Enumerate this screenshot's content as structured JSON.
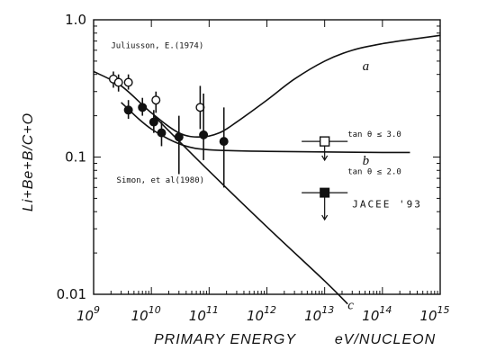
{
  "chart_data": {
    "type": "scatter",
    "xlabel": "PRIMARY ENERGY",
    "xunit": "eV/NUCLEON",
    "ylabel": "Li+Be+B/C+O",
    "xscale": "log",
    "yscale": "log",
    "xlim": [
      1000000000.0,
      1000000000000000.0
    ],
    "ylim": [
      0.01,
      1.0
    ],
    "y_ticks": [
      {
        "value": 1.0,
        "label": "1.0"
      },
      {
        "value": 0.1,
        "label": "0.1"
      },
      {
        "value": 0.01,
        "label": "0.01"
      }
    ],
    "x_ticks": [
      {
        "value": 1000000000.0,
        "base": "10",
        "exp": "9"
      },
      {
        "value": 10000000000.0,
        "base": "10",
        "exp": "10"
      },
      {
        "value": 100000000000.0,
        "base": "10",
        "exp": "11"
      },
      {
        "value": 1000000000000.0,
        "base": "10",
        "exp": "12"
      },
      {
        "value": 10000000000000.0,
        "base": "10",
        "exp": "13"
      },
      {
        "value": 100000000000000.0,
        "base": "10",
        "exp": "14"
      },
      {
        "value": 1000000000000000.0,
        "base": "10",
        "exp": "15"
      }
    ],
    "series": [
      {
        "name": "Juliusson, E.(1974)",
        "marker": "open-circle",
        "points": [
          {
            "x": 2200000000.0,
            "y": 0.37,
            "ylo": 0.32,
            "yhi": 0.42
          },
          {
            "x": 2700000000.0,
            "y": 0.35,
            "ylo": 0.3,
            "yhi": 0.4
          },
          {
            "x": 4000000000.0,
            "y": 0.35,
            "ylo": 0.31,
            "yhi": 0.4
          },
          {
            "x": 12000000000.0,
            "y": 0.26,
            "ylo": 0.21,
            "yhi": 0.3
          },
          {
            "x": 70000000000.0,
            "y": 0.23,
            "ylo": 0.16,
            "yhi": 0.33
          }
        ]
      },
      {
        "name": "Simon, et al(1980)",
        "marker": "filled-circle",
        "points": [
          {
            "x": 4000000000.0,
            "y": 0.22,
            "ylo": 0.19,
            "yhi": 0.26
          },
          {
            "x": 7000000000.0,
            "y": 0.23,
            "ylo": 0.2,
            "yhi": 0.27
          },
          {
            "x": 11000000000.0,
            "y": 0.18,
            "ylo": 0.15,
            "yhi": 0.22
          },
          {
            "x": 15000000000.0,
            "y": 0.15,
            "ylo": 0.12,
            "yhi": 0.18
          },
          {
            "x": 30000000000.0,
            "y": 0.14,
            "ylo": 0.075,
            "yhi": 0.2
          },
          {
            "x": 80000000000.0,
            "y": 0.145,
            "ylo": 0.095,
            "yhi": 0.29
          },
          {
            "x": 180000000000.0,
            "y": 0.13,
            "ylo": 0.06,
            "yhi": 0.23
          }
        ]
      },
      {
        "name": "JACEE '93",
        "marker": "square",
        "points": [
          {
            "x": 10000000000000.0,
            "y": 0.13,
            "marker": "open-square",
            "note": "tan θ ≤ 3.0",
            "upper_limit_to": 0.095,
            "xlo": 4000000000000.0,
            "xhi": 25000000000000.0
          },
          {
            "x": 10000000000000.0,
            "y": 0.055,
            "marker": "filled-square",
            "note": "tan θ ≤ 2.0",
            "upper_limit_to": 0.035,
            "xlo": 4000000000000.0,
            "xhi": 25000000000000.0
          }
        ]
      }
    ],
    "curves": [
      {
        "name": "a",
        "points": [
          [
            1000000000.0,
            0.42
          ],
          [
            3000000000.0,
            0.33
          ],
          [
            10000000000.0,
            0.21
          ],
          [
            30000000000.0,
            0.15
          ],
          [
            70000000000.0,
            0.14
          ],
          [
            150000000000.0,
            0.15
          ],
          [
            300000000000.0,
            0.18
          ],
          [
            1000000000000.0,
            0.26
          ],
          [
            3000000000000.0,
            0.37
          ],
          [
            10000000000000.0,
            0.5
          ],
          [
            30000000000000.0,
            0.6
          ],
          [
            100000000000000.0,
            0.67
          ],
          [
            400000000000000.0,
            0.73
          ],
          [
            1000000000000000.0,
            0.77
          ]
        ]
      },
      {
        "name": "b",
        "points": [
          [
            3000000000.0,
            0.25
          ],
          [
            6000000000.0,
            0.19
          ],
          [
            10000000000.0,
            0.16
          ],
          [
            20000000000.0,
            0.135
          ],
          [
            40000000000.0,
            0.12
          ],
          [
            100000000000.0,
            0.113
          ],
          [
            1000000000000.0,
            0.11
          ],
          [
            100000000000000.0,
            0.108
          ],
          [
            300000000000000.0,
            0.108
          ]
        ]
      },
      {
        "name": "c",
        "points": [
          [
            11000000000.0,
            0.2
          ],
          [
            100000000000.0,
            0.079
          ],
          [
            1000000000000.0,
            0.031
          ],
          [
            10000000000000.0,
            0.0125
          ],
          [
            25000000000000.0,
            0.0085
          ]
        ]
      }
    ],
    "annotations": [
      {
        "text": "Juliusson, E.(1974)",
        "x": 2000000000.0,
        "y": 0.62
      },
      {
        "text": "Simon, et al(1980)",
        "x": 2500000000.0,
        "y": 0.065
      },
      {
        "text": "tan θ ≤ 3.0",
        "x": 25000000000000.0,
        "y": 0.14
      },
      {
        "text": "tan θ ≤ 2.0",
        "x": 25000000000000.0,
        "y": 0.075
      },
      {
        "text": "JACEE '93",
        "x": 30000000000000.0,
        "y": 0.043
      },
      {
        "text": "a",
        "x": 45000000000000.0,
        "y": 0.43
      },
      {
        "text": "b",
        "x": 45000000000000.0,
        "y": 0.088
      },
      {
        "text": "c",
        "x": 25000000000000.0,
        "y": 0.0078
      }
    ]
  }
}
